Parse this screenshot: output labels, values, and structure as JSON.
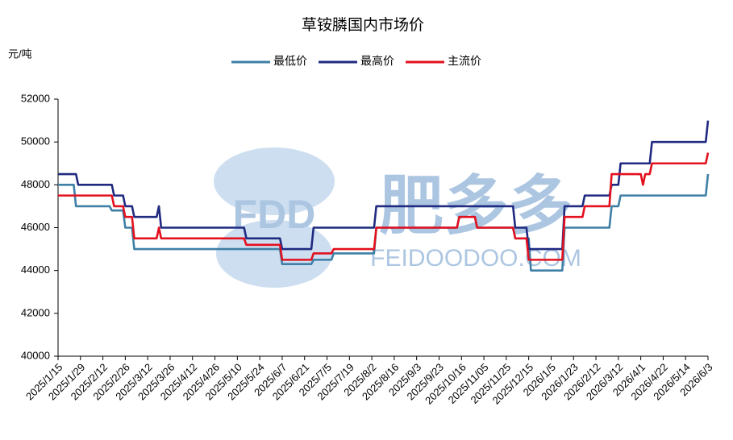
{
  "chart_data": {
    "type": "line",
    "title": "草铵膦国内市场价",
    "y_label": "元/吨",
    "watermark": {
      "logo": "FDD",
      "text": "肥多多",
      "url": "FEIDOODOO.COM"
    },
    "xlim": [
      0,
      290
    ],
    "xticks": [
      {
        "value": 0,
        "label": "2025/1/15"
      },
      {
        "value": 10,
        "label": "2025/1/29"
      },
      {
        "value": 20,
        "label": "2025/2/12"
      },
      {
        "value": 30,
        "label": "2025/2/26"
      },
      {
        "value": 40,
        "label": "2025/3/12"
      },
      {
        "value": 50,
        "label": "2025/3/26"
      },
      {
        "value": 60,
        "label": "2025/4/12"
      },
      {
        "value": 70,
        "label": "2025/4/26"
      },
      {
        "value": 80,
        "label": "2025/5/10"
      },
      {
        "value": 90,
        "label": "2025/5/24"
      },
      {
        "value": 100,
        "label": "2025/6/7"
      },
      {
        "value": 110,
        "label": "2025/6/21"
      },
      {
        "value": 120,
        "label": "2025/7/5"
      },
      {
        "value": 130,
        "label": "2025/7/19"
      },
      {
        "value": 140,
        "label": "2025/8/2"
      },
      {
        "value": 150,
        "label": "2025/8/16"
      },
      {
        "value": 160,
        "label": "2025/9/3"
      },
      {
        "value": 170,
        "label": "2025/9/23"
      },
      {
        "value": 180,
        "label": "2025/10/16"
      },
      {
        "value": 190,
        "label": "2025/11/05"
      },
      {
        "value": 200,
        "label": "2025/11/25"
      },
      {
        "value": 210,
        "label": "2025/12/15"
      },
      {
        "value": 220,
        "label": "2026/1/5"
      },
      {
        "value": 230,
        "label": "2026/1/23"
      },
      {
        "value": 240,
        "label": "2026/2/12"
      },
      {
        "value": 250,
        "label": "2026/3/12"
      },
      {
        "value": 260,
        "label": "2026/4/1"
      },
      {
        "value": 270,
        "label": "2026/4/22"
      },
      {
        "value": 280,
        "label": "2026/5/14"
      },
      {
        "value": 290,
        "label": "2026/6/3"
      }
    ],
    "ylim": [
      40000,
      52000
    ],
    "yticks": [
      40000,
      42000,
      44000,
      46000,
      48000,
      50000,
      52000
    ],
    "grid": false,
    "legend": "top",
    "series": [
      {
        "name": "最低价",
        "color": "#3f7fa6",
        "x": [
          0,
          7,
          8,
          23,
          24,
          29,
          30,
          33,
          34,
          99,
          100,
          113,
          114,
          122,
          123,
          141,
          142,
          178,
          179,
          186,
          187,
          203,
          204,
          210,
          211,
          225,
          226,
          246,
          247,
          250,
          251,
          289,
          290
        ],
        "values": [
          48000,
          48000,
          47000,
          47000,
          46800,
          46800,
          46000,
          46000,
          45000,
          45000,
          44300,
          44300,
          44500,
          44500,
          44800,
          44800,
          46000,
          46000,
          46500,
          46500,
          46000,
          46000,
          45500,
          45500,
          44000,
          44000,
          46000,
          46000,
          47000,
          47000,
          47500,
          47500,
          48500
        ]
      },
      {
        "name": "最高价",
        "color": "#1f2a80",
        "x": [
          0,
          8,
          9,
          24,
          25,
          29,
          30,
          33,
          34,
          44,
          45,
          46,
          83,
          84,
          99,
          100,
          113,
          114,
          141,
          142,
          203,
          204,
          209,
          210,
          225,
          226,
          234,
          235,
          246,
          247,
          250,
          251,
          264,
          265,
          289,
          290
        ],
        "values": [
          48500,
          48500,
          48000,
          48000,
          47500,
          47500,
          47000,
          47000,
          46500,
          46500,
          47000,
          46000,
          46000,
          45500,
          45500,
          45000,
          45000,
          46000,
          46000,
          47000,
          47000,
          46000,
          46000,
          45000,
          45000,
          47000,
          47000,
          47500,
          47500,
          48000,
          48000,
          49000,
          49000,
          50000,
          50000,
          51000
        ]
      },
      {
        "name": "主流价",
        "color": "#e3101e",
        "x": [
          0,
          24,
          25,
          29,
          30,
          33,
          34,
          44,
          45,
          46,
          83,
          84,
          99,
          100,
          113,
          114,
          122,
          123,
          141,
          142,
          178,
          179,
          186,
          187,
          203,
          204,
          209,
          210,
          225,
          226,
          234,
          235,
          246,
          247,
          260,
          261,
          262,
          264,
          265,
          289,
          290
        ],
        "values": [
          47500,
          47500,
          47000,
          47000,
          46500,
          46500,
          45500,
          45500,
          46000,
          45500,
          45500,
          45200,
          45200,
          44500,
          44500,
          44800,
          44800,
          45000,
          45000,
          46000,
          46000,
          46500,
          46500,
          46000,
          46000,
          45500,
          45500,
          44500,
          44500,
          46500,
          46500,
          47000,
          47000,
          48500,
          48500,
          48000,
          48500,
          48500,
          49000,
          49000,
          49500
        ]
      }
    ]
  }
}
